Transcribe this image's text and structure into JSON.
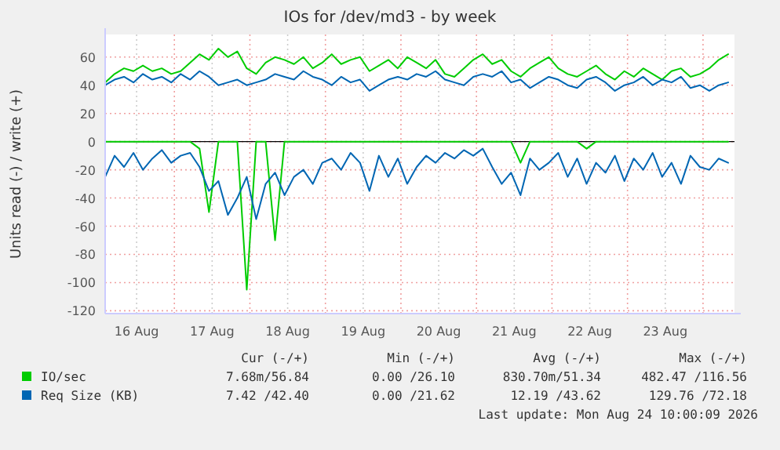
{
  "chart_data": {
    "type": "line",
    "title": "IOs for /dev/md3 - by week",
    "ylabel": "Units read (-) / write (+)",
    "x": [
      "2026-08-16T02:00",
      "2026-08-16T05:00",
      "2026-08-16T08:00",
      "2026-08-16T11:00",
      "2026-08-16T14:00",
      "2026-08-16T17:00",
      "2026-08-16T20:00",
      "2026-08-16T23:00",
      "2026-08-17T02:00",
      "2026-08-17T05:00",
      "2026-08-17T08:00",
      "2026-08-17T11:00",
      "2026-08-17T14:00",
      "2026-08-17T17:00",
      "2026-08-17T20:00",
      "2026-08-17T23:00",
      "2026-08-18T02:00",
      "2026-08-18T05:00",
      "2026-08-18T08:00",
      "2026-08-18T11:00",
      "2026-08-18T14:00",
      "2026-08-18T17:00",
      "2026-08-18T20:00",
      "2026-08-18T23:00",
      "2026-08-19T02:00",
      "2026-08-19T05:00",
      "2026-08-19T08:00",
      "2026-08-19T11:00",
      "2026-08-19T14:00",
      "2026-08-19T17:00",
      "2026-08-19T20:00",
      "2026-08-19T23:00",
      "2026-08-20T02:00",
      "2026-08-20T05:00",
      "2026-08-20T08:00",
      "2026-08-20T11:00",
      "2026-08-20T14:00",
      "2026-08-20T17:00",
      "2026-08-20T20:00",
      "2026-08-20T23:00",
      "2026-08-21T02:00",
      "2026-08-21T05:00",
      "2026-08-21T08:00",
      "2026-08-21T11:00",
      "2026-08-21T14:00",
      "2026-08-21T17:00",
      "2026-08-21T20:00",
      "2026-08-21T23:00",
      "2026-08-22T02:00",
      "2026-08-22T05:00",
      "2026-08-22T08:00",
      "2026-08-22T11:00",
      "2026-08-22T14:00",
      "2026-08-22T17:00",
      "2026-08-22T20:00",
      "2026-08-22T23:00",
      "2026-08-23T02:00",
      "2026-08-23T05:00",
      "2026-08-23T08:00",
      "2026-08-23T11:00",
      "2026-08-23T14:00",
      "2026-08-23T17:00",
      "2026-08-23T20:00",
      "2026-08-23T23:00",
      "2026-08-24T02:00",
      "2026-08-24T05:00",
      "2026-08-24T08:00"
    ],
    "series": [
      {
        "color": "#00cc00",
        "values": [
          0,
          0,
          0,
          0,
          0,
          0,
          0,
          0,
          0,
          0,
          -5,
          -50,
          0,
          0,
          0,
          -105,
          0,
          0,
          -70,
          0,
          0,
          0,
          0,
          0,
          0,
          0,
          0,
          0,
          0,
          0,
          0,
          0,
          0,
          0,
          0,
          0,
          0,
          0,
          0,
          0,
          0,
          0,
          0,
          0,
          -15,
          0,
          0,
          0,
          0,
          0,
          0,
          -5,
          0,
          0,
          0,
          0,
          0,
          0,
          0,
          0,
          0,
          0,
          0,
          0,
          0,
          0,
          0
        ]
      },
      {
        "color": "#0066b3",
        "values": [
          -25,
          -10,
          -18,
          -8,
          -20,
          -12,
          -6,
          -15,
          -10,
          -8,
          -18,
          -35,
          -28,
          -52,
          -40,
          -25,
          -55,
          -30,
          -22,
          -38,
          -25,
          -20,
          -30,
          -15,
          -12,
          -20,
          -8,
          -15,
          -35,
          -10,
          -25,
          -12,
          -30,
          -18,
          -10,
          -15,
          -8,
          -12,
          -6,
          -10,
          -5,
          -18,
          -30,
          -22,
          -38,
          -12,
          -20,
          -15,
          -8,
          -25,
          -12,
          -30,
          -15,
          -22,
          -10,
          -28,
          -12,
          -20,
          -8,
          -25,
          -15,
          -30,
          -10,
          -18,
          -20,
          -12,
          -15
        ]
      },
      {
        "name": "IO/sec",
        "color": "#00cc00",
        "values": [
          42,
          48,
          52,
          50,
          54,
          50,
          52,
          48,
          50,
          56,
          62,
          58,
          66,
          60,
          64,
          52,
          48,
          56,
          60,
          58,
          55,
          60,
          52,
          56,
          62,
          55,
          58,
          60,
          50,
          54,
          58,
          52,
          60,
          56,
          52,
          58,
          48,
          46,
          52,
          58,
          62,
          55,
          58,
          50,
          46,
          52,
          56,
          60,
          52,
          48,
          46,
          50,
          54,
          48,
          44,
          50,
          46,
          52,
          48,
          44,
          50,
          52,
          46,
          48,
          52,
          58,
          62
        ]
      },
      {
        "name": "Req Size (KB)",
        "color": "#0066b3",
        "values": [
          40,
          44,
          46,
          42,
          48,
          44,
          46,
          42,
          48,
          44,
          50,
          46,
          40,
          42,
          44,
          40,
          42,
          44,
          48,
          46,
          44,
          50,
          46,
          44,
          40,
          46,
          42,
          44,
          36,
          40,
          44,
          46,
          44,
          48,
          46,
          50,
          44,
          42,
          40,
          46,
          48,
          46,
          50,
          42,
          44,
          38,
          42,
          46,
          44,
          40,
          38,
          44,
          46,
          42,
          36,
          40,
          42,
          46,
          40,
          44,
          42,
          46,
          38,
          40,
          36,
          40,
          42
        ]
      }
    ],
    "xlim": [
      "2026-08-16T02:00",
      "2026-08-24T10:00"
    ],
    "xticks": [
      {
        "value": "2026-08-16T12:00",
        "label": "16 Aug"
      },
      {
        "value": "2026-08-17T00:00",
        "label": null
      },
      {
        "value": "2026-08-17T12:00",
        "label": "17 Aug"
      },
      {
        "value": "2026-08-18T00:00",
        "label": null
      },
      {
        "value": "2026-08-18T12:00",
        "label": "18 Aug"
      },
      {
        "value": "2026-08-19T00:00",
        "label": null
      },
      {
        "value": "2026-08-19T12:00",
        "label": "19 Aug"
      },
      {
        "value": "2026-08-20T00:00",
        "label": null
      },
      {
        "value": "2026-08-20T12:00",
        "label": "20 Aug"
      },
      {
        "value": "2026-08-21T00:00",
        "label": null
      },
      {
        "value": "2026-08-21T12:00",
        "label": "21 Aug"
      },
      {
        "value": "2026-08-22T00:00",
        "label": null
      },
      {
        "value": "2026-08-22T12:00",
        "label": "22 Aug"
      },
      {
        "value": "2026-08-23T00:00",
        "label": null
      },
      {
        "value": "2026-08-23T12:00",
        "label": "23 Aug"
      },
      {
        "value": "2026-08-24T00:00",
        "label": null
      }
    ],
    "ylim": [
      -122,
      76
    ],
    "yticks": [
      -120,
      -100,
      -80,
      -60,
      -40,
      -20,
      0,
      20,
      40,
      60
    ],
    "grid": true,
    "legend": "bottom",
    "ref_lines": [
      {
        "axis": "y",
        "value": 0,
        "color": "#000000"
      }
    ],
    "annotations": [
      "Cur (-/+)",
      "Min (-/+)",
      "Avg (-/+)",
      "Max (-/+)",
      "7.68m/56.84",
      "0.00 /26.10",
      "830.70m/51.34",
      "482.47 /116.56",
      "7.42 /42.40",
      "0.00 /21.62",
      "12.19 /43.62",
      "129.76 /72.18",
      "Last update: Mon Aug 24 10:00:09 2026"
    ]
  }
}
